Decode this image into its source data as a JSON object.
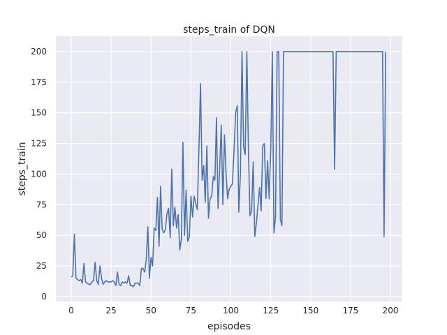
{
  "chart_data": {
    "type": "line",
    "title": "steps_train of DQN",
    "xlabel": "episodes",
    "ylabel": "steps_train",
    "xlim": [
      -9.6,
      207.4
    ],
    "ylim": [
      -4,
      212.5
    ],
    "xticks": [
      0,
      25,
      50,
      75,
      100,
      125,
      150,
      175,
      200
    ],
    "yticks": [
      0,
      25,
      50,
      75,
      100,
      125,
      150,
      175,
      200
    ],
    "grid": true,
    "background": "#eaeaf2",
    "line_color": "#4c72b0",
    "values": [
      16,
      17,
      51,
      15,
      14,
      13,
      14,
      11,
      27,
      12,
      11,
      10,
      10,
      12,
      13,
      28,
      13,
      10,
      25,
      15,
      10,
      12,
      13,
      12,
      12,
      12,
      13,
      12,
      9,
      20,
      10,
      9,
      12,
      11,
      12,
      11,
      17,
      9,
      9,
      8,
      11,
      11,
      11,
      9,
      23,
      23,
      20,
      30,
      57,
      15,
      32,
      25,
      56,
      54,
      81,
      41,
      90,
      55,
      52,
      55,
      68,
      72,
      48,
      104,
      58,
      73,
      56,
      67,
      38,
      47,
      126,
      50,
      87,
      45,
      49,
      82,
      65,
      82,
      76,
      71,
      120,
      174,
      95,
      107,
      77,
      123,
      64,
      80,
      82,
      98,
      95,
      146,
      72,
      105,
      140,
      75,
      132,
      100,
      80,
      88,
      90,
      92,
      120,
      150,
      156,
      69,
      100,
      200,
      122,
      116,
      200,
      120,
      66,
      70,
      110,
      49,
      60,
      75,
      89,
      70,
      123,
      125,
      80,
      111,
      80,
      121,
      200,
      52,
      65,
      200,
      200,
      63,
      58,
      200,
      200,
      200,
      200,
      200,
      200,
      200,
      200,
      200,
      200,
      200,
      200,
      200,
      200,
      200,
      200,
      200,
      200,
      200,
      200,
      200,
      200,
      200,
      200,
      200,
      200,
      200,
      200,
      200,
      200,
      200,
      200,
      104,
      200,
      200,
      200,
      200,
      200,
      200,
      200,
      200,
      200,
      200,
      200,
      200,
      200,
      200,
      200,
      200,
      200,
      200,
      200,
      200,
      200,
      200,
      200,
      200,
      200,
      200,
      200,
      200,
      200,
      200,
      49,
      200
    ]
  }
}
